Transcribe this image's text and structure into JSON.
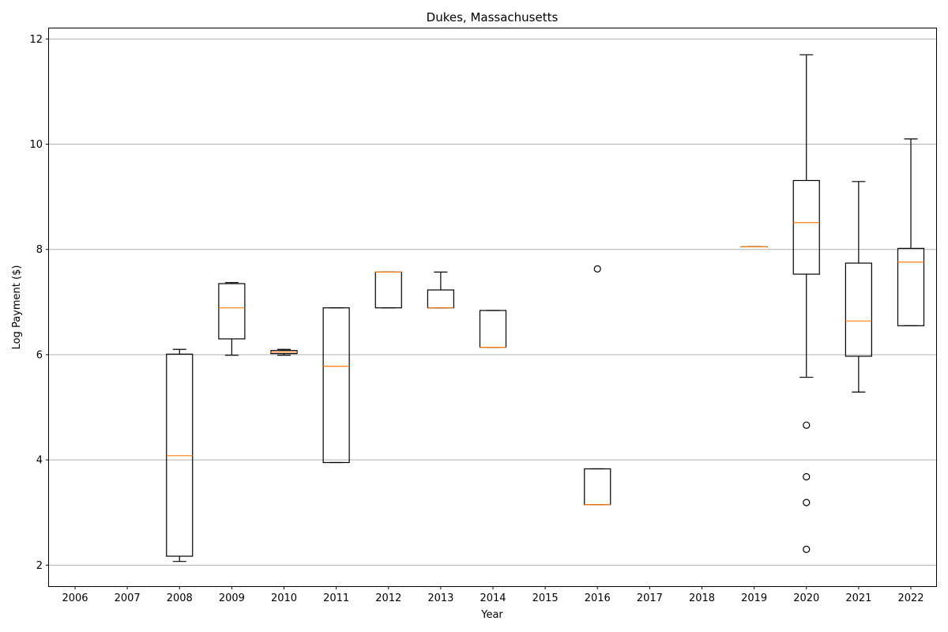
{
  "chart_data": {
    "type": "box",
    "title": "Dukes, Massachusetts",
    "xlabel": "Year",
    "ylabel": "Log Payment ($)",
    "ylim": [
      1.6,
      12.2
    ],
    "yticks": [
      2,
      4,
      6,
      8,
      10,
      12
    ],
    "grid": "horizontal",
    "categories": [
      "2006",
      "2007",
      "2008",
      "2009",
      "2010",
      "2011",
      "2012",
      "2013",
      "2014",
      "2015",
      "2016",
      "2017",
      "2018",
      "2019",
      "2020",
      "2021",
      "2022"
    ],
    "boxes": [
      {
        "year": "2008",
        "whisker_low": 2.07,
        "q1": 2.17,
        "median": 4.08,
        "q3": 6.01,
        "whisker_high": 6.1,
        "outliers": []
      },
      {
        "year": "2009",
        "whisker_low": 5.99,
        "q1": 6.3,
        "median": 6.89,
        "q3": 7.35,
        "whisker_high": 7.37,
        "outliers": []
      },
      {
        "year": "2010",
        "whisker_low": 5.99,
        "q1": 6.02,
        "median": 6.05,
        "q3": 6.08,
        "whisker_high": 6.1,
        "outliers": []
      },
      {
        "year": "2011",
        "whisker_low": 3.95,
        "q1": 3.95,
        "median": 5.78,
        "q3": 6.89,
        "whisker_high": 6.89,
        "outliers": []
      },
      {
        "year": "2012",
        "whisker_low": 6.89,
        "q1": 6.89,
        "median": 7.57,
        "q3": 7.57,
        "whisker_high": 7.57,
        "outliers": []
      },
      {
        "year": "2013",
        "whisker_low": 6.89,
        "q1": 6.89,
        "median": 6.89,
        "q3": 7.23,
        "whisker_high": 7.57,
        "outliers": []
      },
      {
        "year": "2014",
        "whisker_low": 6.14,
        "q1": 6.14,
        "median": 6.14,
        "q3": 6.84,
        "whisker_high": 6.84,
        "outliers": []
      },
      {
        "year": "2016",
        "whisker_low": 3.15,
        "q1": 3.15,
        "median": 3.15,
        "q3": 3.83,
        "whisker_high": 3.83,
        "outliers": [
          7.63
        ]
      },
      {
        "year": "2019",
        "whisker_low": 8.05,
        "q1": 8.05,
        "median": 8.05,
        "q3": 8.05,
        "whisker_high": 8.05,
        "outliers": []
      },
      {
        "year": "2020",
        "whisker_low": 5.57,
        "q1": 7.53,
        "median": 8.51,
        "q3": 9.31,
        "whisker_high": 11.7,
        "outliers": [
          4.66,
          3.68,
          3.19,
          2.3
        ]
      },
      {
        "year": "2021",
        "whisker_low": 5.29,
        "q1": 5.97,
        "median": 6.64,
        "q3": 7.74,
        "whisker_high": 9.29,
        "outliers": []
      },
      {
        "year": "2022",
        "whisker_low": 6.55,
        "q1": 6.55,
        "median": 7.76,
        "q3": 8.02,
        "whisker_high": 10.1,
        "outliers": []
      }
    ],
    "colors": {
      "box": "#000000",
      "median": "#ff7f0e",
      "grid": "#b0b0b0"
    }
  }
}
